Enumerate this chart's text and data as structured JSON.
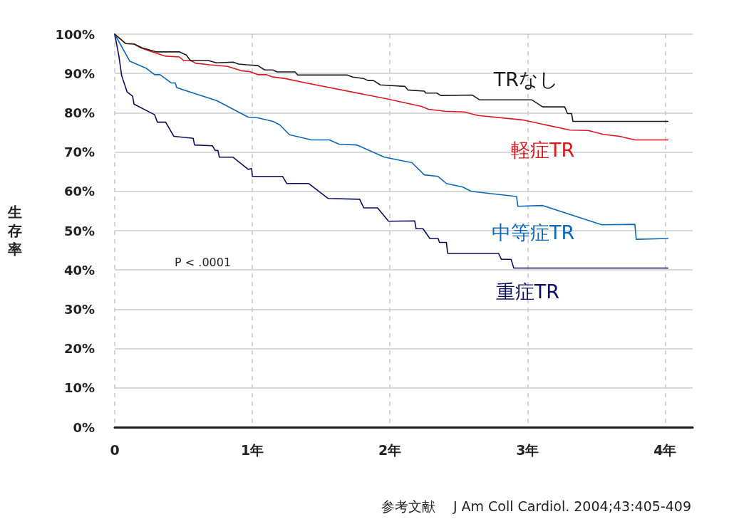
{
  "chart_data": {
    "type": "line",
    "ylabel": "生存率",
    "xlim": [
      0,
      4.2
    ],
    "ylim": [
      0,
      100
    ],
    "xticks": [
      0,
      {
        "value": 1,
        "label": "1年"
      },
      {
        "value": 2,
        "label": "2年"
      },
      {
        "value": 3,
        "label": "3年"
      },
      {
        "value": 4,
        "label": "4年"
      }
    ],
    "yticks": [
      {
        "value": 0,
        "label": "0%"
      },
      {
        "value": 10,
        "label": "10%"
      },
      {
        "value": 20,
        "label": "20%"
      },
      {
        "value": 30,
        "label": "30%"
      },
      {
        "value": 40,
        "label": "40%"
      },
      {
        "value": 50,
        "label": "50%"
      },
      {
        "value": 60,
        "label": "60%"
      },
      {
        "value": 70,
        "label": "70%"
      },
      {
        "value": 80,
        "label": "80%"
      },
      {
        "value": 90,
        "label": "90%"
      },
      {
        "value": 100,
        "label": "100%"
      }
    ],
    "grid": true,
    "legend": false,
    "marker": "none",
    "line_style": "solid",
    "annotations": [
      "P < .0001",
      "参考文献　 J Am Coll Cardiol. 2004;43:405-409"
    ],
    "series": [
      {
        "name": "TRなし",
        "color": "#1a1a1a",
        "x": [
          0,
          0.08,
          0.14,
          0.2,
          0.3,
          0.47,
          0.52,
          0.55,
          0.68,
          0.74,
          0.86,
          0.9,
          0.96,
          1.04,
          1.09,
          1.15,
          1.18,
          1.31,
          1.33,
          1.69,
          1.73,
          1.81,
          1.84,
          1.88,
          1.93,
          2.11,
          2.13,
          2.25,
          2.26,
          2.34,
          2.37,
          2.6,
          2.65,
          3.03,
          3.11,
          3.27,
          3.29,
          3.32,
          3.33,
          4.02
        ],
        "values": [
          100,
          97.6,
          97.5,
          96.5,
          95.5,
          95.5,
          94.7,
          93.3,
          93.3,
          92.7,
          92.9,
          92.4,
          92.2,
          92,
          90.9,
          90.9,
          90.4,
          90.4,
          89.6,
          89.6,
          89.1,
          88.7,
          88.2,
          88.2,
          87.1,
          86.7,
          85.8,
          85.5,
          85,
          85,
          84.4,
          84.5,
          83.3,
          83.3,
          81.5,
          81.5,
          79.8,
          79.8,
          77.8,
          77.8
        ]
      },
      {
        "name": "軽症TR",
        "color": "#d7191f",
        "x": [
          0,
          0.08,
          0.14,
          0.19,
          0.27,
          0.37,
          0.47,
          0.5,
          0.55,
          0.59,
          0.69,
          0.82,
          0.92,
          0.98,
          1.04,
          1.1,
          1.15,
          1.24,
          1.39,
          1.97,
          2.23,
          2.28,
          2.4,
          2.54,
          2.64,
          2.96,
          3.31,
          3.44,
          3.55,
          3.67,
          3.78,
          4.02
        ],
        "values": [
          100,
          97.6,
          97.5,
          96.5,
          95.5,
          94.4,
          94.2,
          93.3,
          93.3,
          92.6,
          92.2,
          91.8,
          90.7,
          90.5,
          89.7,
          89.7,
          89.1,
          88.7,
          87.6,
          83.6,
          81.6,
          80.9,
          80.4,
          80.2,
          79.3,
          78.2,
          75.6,
          75.5,
          74.5,
          74,
          73.1,
          73.1
        ]
      },
      {
        "name": "中等症TR",
        "color": "#0b67b5",
        "x": [
          0,
          0.11,
          0.23,
          0.29,
          0.33,
          0.41,
          0.44,
          0.45,
          0.74,
          0.97,
          1.04,
          1.15,
          1.2,
          1.27,
          1.43,
          1.56,
          1.63,
          1.76,
          1.96,
          2.16,
          2.25,
          2.35,
          2.41,
          2.53,
          2.59,
          2.92,
          2.93,
          3.11,
          3.54,
          3.78,
          3.79,
          4.02
        ],
        "values": [
          100,
          93.1,
          91.3,
          89.7,
          89.7,
          87.6,
          87.6,
          86.4,
          83.1,
          78.9,
          78.7,
          77.8,
          76.9,
          74.4,
          73.1,
          73.1,
          72,
          71.8,
          68.7,
          67.3,
          64.2,
          63.8,
          62,
          61.1,
          60,
          58.7,
          56.2,
          56.4,
          51.5,
          51.6,
          47.8,
          48
        ]
      },
      {
        "name": "重症TR",
        "color": "#0d0d5e",
        "x": [
          0,
          0.03,
          0.05,
          0.09,
          0.13,
          0.14,
          0.29,
          0.31,
          0.37,
          0.43,
          0.57,
          0.58,
          0.71,
          0.73,
          0.75,
          0.76,
          0.86,
          0.97,
          0.995,
          1.0,
          1.22,
          1.25,
          1.41,
          1.55,
          1.78,
          1.81,
          1.91,
          1.99,
          2.18,
          2.19,
          2.24,
          2.29,
          2.35,
          2.36,
          2.41,
          2.42,
          2.79,
          2.81,
          2.88,
          2.9,
          4.02
        ],
        "values": [
          100,
          94.5,
          89.5,
          85.3,
          84.2,
          82.2,
          79.5,
          77.6,
          77.6,
          74,
          73.5,
          71.8,
          71.6,
          70.4,
          70.4,
          68.7,
          68.7,
          65.6,
          65.8,
          63.8,
          63.8,
          62,
          62,
          58.2,
          58,
          55.8,
          55.8,
          52.4,
          52.5,
          50.5,
          50.5,
          48,
          48,
          47,
          47,
          44.2,
          44.2,
          42.7,
          42.7,
          40.5,
          40.5
        ]
      }
    ]
  }
}
